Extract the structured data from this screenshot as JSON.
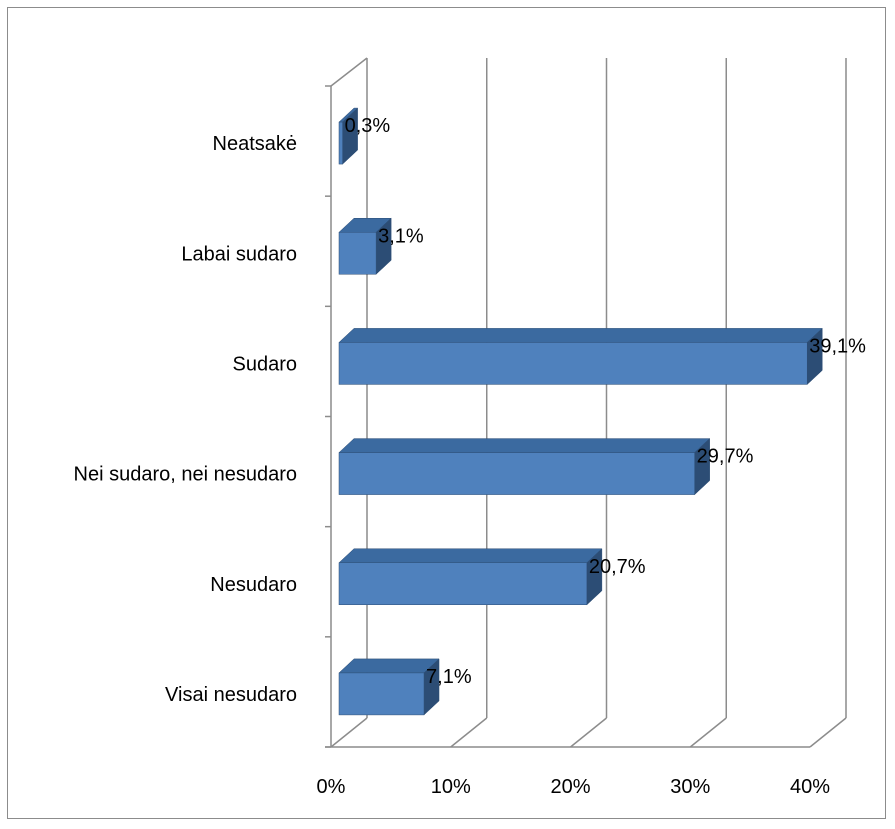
{
  "chart_data": {
    "type": "bar",
    "orientation": "horizontal",
    "style": "3d",
    "categories": [
      "Neatsakė",
      "Labai sudaro",
      "Sudaro",
      "Nei sudaro, nei nesudaro",
      "Nesudaro",
      "Visai nesudaro"
    ],
    "values": [
      0.3,
      3.1,
      39.1,
      29.7,
      20.7,
      7.1
    ],
    "data_labels": [
      "0,3%",
      "3,1%",
      "39,1%",
      "29,7%",
      "20,7%",
      "7,1%"
    ],
    "x_ticks": [
      "0%",
      "10%",
      "20%",
      "30%",
      "40%"
    ],
    "xlim": [
      0,
      40
    ],
    "grid": true,
    "legend": "none",
    "title": "",
    "xlabel": "",
    "ylabel": "",
    "colors": {
      "bar_front": "#4f81bd",
      "bar_top": "#3b6aa0",
      "bar_side": "#2c4d75",
      "grid": "#8c8c8c"
    }
  }
}
